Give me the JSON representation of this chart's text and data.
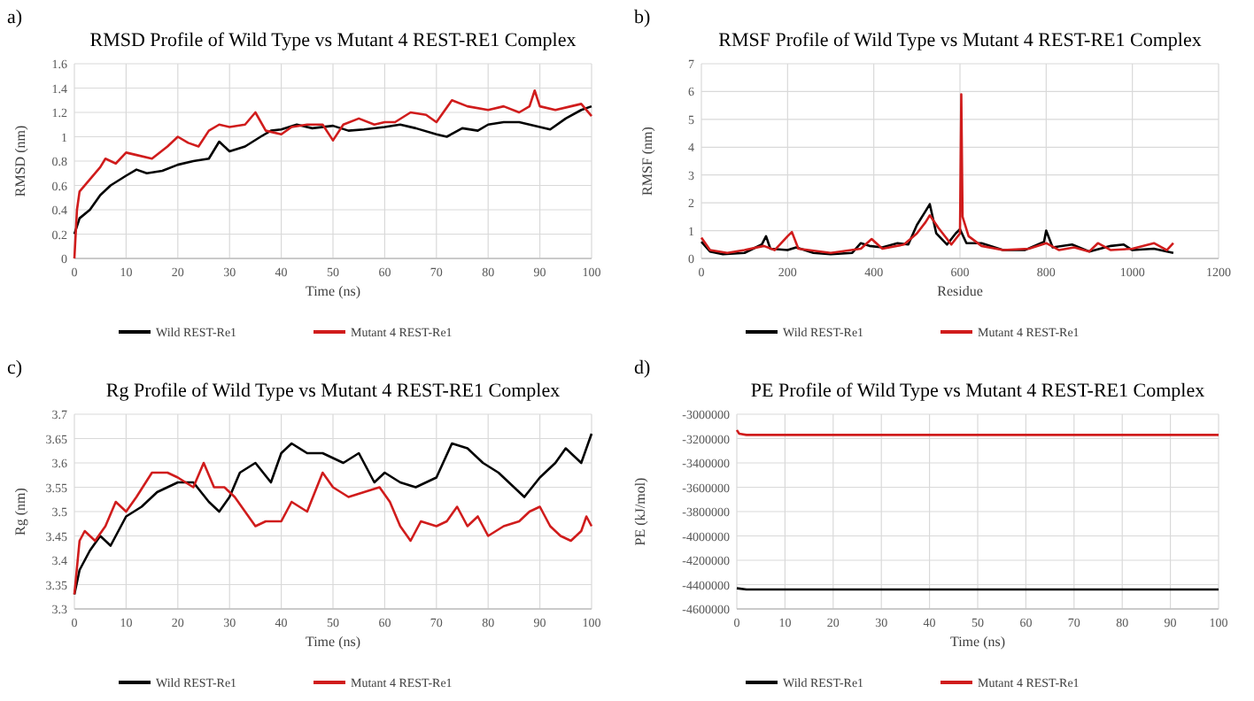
{
  "chart_data": [
    {
      "type": "line",
      "title": "RMSD Profile of Wild Type vs Mutant 4 REST-RE1 Complex",
      "xlabel": "Time (ns)",
      "ylabel": "RMSD (nm)",
      "annotations": [
        "a)"
      ],
      "xlim": [
        0,
        100
      ],
      "xticks": [
        0,
        10,
        20,
        30,
        40,
        50,
        60,
        70,
        80,
        90,
        100
      ],
      "ylim": [
        0,
        1.6
      ],
      "yticks": [
        {
          "value": 0,
          "label": "0"
        },
        {
          "value": 0.2,
          "label": "0.2"
        },
        {
          "value": 0.4,
          "label": "0.4"
        },
        {
          "value": 0.6,
          "label": "0.6"
        },
        {
          "value": 0.8,
          "label": "0.8"
        },
        {
          "value": 1,
          "label": "1"
        },
        {
          "value": 1.2,
          "label": "1.2"
        },
        {
          "value": 1.4,
          "label": "1.4"
        },
        {
          "value": 1.6,
          "label": "1.6"
        }
      ],
      "grid": true,
      "legend": "bottom",
      "series": [
        {
          "name": "Wild REST-Re1",
          "color": "#000000",
          "x": [
            0,
            1,
            3,
            5,
            7,
            10,
            12,
            14,
            17,
            20,
            23,
            26,
            28,
            30,
            33,
            36,
            38,
            40,
            43,
            46,
            50,
            53,
            56,
            60,
            63,
            66,
            70,
            72,
            75,
            78,
            80,
            83,
            86,
            90,
            92,
            95,
            98,
            100
          ],
          "values": [
            0.2,
            0.33,
            0.4,
            0.52,
            0.6,
            0.68,
            0.73,
            0.7,
            0.72,
            0.77,
            0.8,
            0.82,
            0.96,
            0.88,
            0.92,
            1.0,
            1.05,
            1.06,
            1.1,
            1.07,
            1.09,
            1.05,
            1.06,
            1.08,
            1.1,
            1.07,
            1.02,
            1.0,
            1.07,
            1.05,
            1.1,
            1.12,
            1.12,
            1.08,
            1.06,
            1.15,
            1.22,
            1.25
          ]
        },
        {
          "name": "Mutant 4 REST-Re1",
          "color": "#d01c1c",
          "x": [
            0,
            0.5,
            1,
            3,
            5,
            6,
            8,
            10,
            12,
            15,
            18,
            20,
            22,
            24,
            26,
            28,
            30,
            33,
            35,
            37,
            40,
            42,
            45,
            48,
            50,
            52,
            55,
            58,
            60,
            62,
            65,
            68,
            70,
            73,
            76,
            80,
            83,
            86,
            88,
            89,
            90,
            93,
            96,
            98,
            100
          ],
          "values": [
            0,
            0.4,
            0.55,
            0.65,
            0.75,
            0.82,
            0.78,
            0.87,
            0.85,
            0.82,
            0.92,
            1.0,
            0.95,
            0.92,
            1.05,
            1.1,
            1.08,
            1.1,
            1.2,
            1.05,
            1.02,
            1.08,
            1.1,
            1.1,
            0.97,
            1.1,
            1.15,
            1.1,
            1.12,
            1.12,
            1.2,
            1.18,
            1.12,
            1.3,
            1.25,
            1.22,
            1.25,
            1.2,
            1.25,
            1.38,
            1.25,
            1.22,
            1.25,
            1.27,
            1.17
          ]
        }
      ]
    },
    {
      "type": "line",
      "title": "RMSF Profile of Wild Type vs Mutant 4 REST-RE1 Complex",
      "xlabel": "Residue",
      "ylabel": "RMSF (nm)",
      "annotations": [
        "b)"
      ],
      "xlim": [
        0,
        1200
      ],
      "xticks": [
        0,
        200,
        400,
        600,
        800,
        1000,
        1200
      ],
      "ylim": [
        0,
        7
      ],
      "yticks": [
        0,
        1,
        2,
        3,
        4,
        5,
        6,
        7
      ],
      "grid": true,
      "legend": "bottom",
      "series": [
        {
          "name": "Wild REST-Re1",
          "color": "#000000",
          "x": [
            0,
            20,
            50,
            100,
            140,
            150,
            160,
            200,
            220,
            260,
            300,
            350,
            370,
            390,
            420,
            455,
            480,
            500,
            520,
            530,
            545,
            570,
            590,
            600,
            615,
            650,
            700,
            750,
            795,
            800,
            815,
            860,
            900,
            950,
            980,
            1000,
            1050,
            1095
          ],
          "values": [
            0.6,
            0.25,
            0.15,
            0.2,
            0.5,
            0.8,
            0.35,
            0.3,
            0.4,
            0.2,
            0.15,
            0.2,
            0.55,
            0.45,
            0.4,
            0.55,
            0.5,
            1.2,
            1.7,
            1.95,
            0.9,
            0.5,
            0.9,
            1.05,
            0.55,
            0.55,
            0.3,
            0.3,
            0.6,
            1.0,
            0.4,
            0.5,
            0.25,
            0.45,
            0.5,
            0.3,
            0.35,
            0.2
          ]
        },
        {
          "name": "Mutant 4 REST-Re1",
          "color": "#d01c1c",
          "x": [
            0,
            20,
            60,
            100,
            145,
            170,
            200,
            210,
            225,
            300,
            370,
            395,
            420,
            470,
            500,
            520,
            530,
            550,
            580,
            600,
            603,
            606,
            620,
            650,
            700,
            760,
            800,
            830,
            865,
            900,
            920,
            950,
            1000,
            1050,
            1080,
            1095
          ],
          "values": [
            0.75,
            0.3,
            0.2,
            0.3,
            0.45,
            0.3,
            0.8,
            0.95,
            0.35,
            0.2,
            0.35,
            0.7,
            0.35,
            0.5,
            0.9,
            1.3,
            1.55,
            1.1,
            0.5,
            0.9,
            5.9,
            1.5,
            0.8,
            0.45,
            0.3,
            0.35,
            0.55,
            0.3,
            0.4,
            0.25,
            0.55,
            0.3,
            0.35,
            0.55,
            0.3,
            0.55
          ]
        }
      ]
    },
    {
      "type": "line",
      "title": "Rg Profile of Wild Type vs Mutant 4 REST-RE1 Complex",
      "xlabel": "Time (ns)",
      "ylabel": "Rg (nm)",
      "annotations": [
        "c)"
      ],
      "xlim": [
        0,
        100
      ],
      "xticks": [
        0,
        10,
        20,
        30,
        40,
        50,
        60,
        70,
        80,
        90,
        100
      ],
      "ylim": [
        3.3,
        3.7
      ],
      "yticks": [
        3.3,
        3.35,
        3.4,
        3.45,
        3.5,
        3.55,
        3.6,
        3.65,
        3.7
      ],
      "grid": true,
      "legend": "bottom",
      "series": [
        {
          "name": "Wild REST-Re1",
          "color": "#000000",
          "x": [
            0,
            1,
            3,
            5,
            7,
            10,
            13,
            16,
            20,
            23,
            26,
            28,
            30,
            32,
            35,
            38,
            40,
            42,
            45,
            48,
            52,
            55,
            58,
            60,
            63,
            66,
            70,
            73,
            76,
            79,
            82,
            85,
            87,
            90,
            93,
            95,
            98,
            100
          ],
          "values": [
            3.33,
            3.38,
            3.42,
            3.45,
            3.43,
            3.49,
            3.51,
            3.54,
            3.56,
            3.56,
            3.52,
            3.5,
            3.53,
            3.58,
            3.6,
            3.56,
            3.62,
            3.64,
            3.62,
            3.62,
            3.6,
            3.62,
            3.56,
            3.58,
            3.56,
            3.55,
            3.57,
            3.64,
            3.63,
            3.6,
            3.58,
            3.55,
            3.53,
            3.57,
            3.6,
            3.63,
            3.6,
            3.66
          ]
        },
        {
          "name": "Mutant 4 REST-Re1",
          "color": "#d01c1c",
          "x": [
            0,
            1,
            2,
            4,
            6,
            8,
            10,
            12,
            15,
            18,
            20,
            23,
            25,
            27,
            29,
            31,
            33,
            35,
            37,
            40,
            42,
            45,
            48,
            50,
            53,
            56,
            59,
            61,
            63,
            65,
            67,
            70,
            72,
            74,
            76,
            78,
            80,
            83,
            86,
            88,
            90,
            92,
            94,
            96,
            98,
            99,
            100
          ],
          "values": [
            3.33,
            3.44,
            3.46,
            3.44,
            3.47,
            3.52,
            3.5,
            3.53,
            3.58,
            3.58,
            3.57,
            3.55,
            3.6,
            3.55,
            3.55,
            3.53,
            3.5,
            3.47,
            3.48,
            3.48,
            3.52,
            3.5,
            3.58,
            3.55,
            3.53,
            3.54,
            3.55,
            3.52,
            3.47,
            3.44,
            3.48,
            3.47,
            3.48,
            3.51,
            3.47,
            3.49,
            3.45,
            3.47,
            3.48,
            3.5,
            3.51,
            3.47,
            3.45,
            3.44,
            3.46,
            3.49,
            3.47
          ]
        }
      ]
    },
    {
      "type": "line",
      "title": "PE Profile of Wild Type vs Mutant 4 REST-RE1 Complex",
      "xlabel": "Time (ns)",
      "ylabel": "PE (kJ/mol)",
      "annotations": [
        "d)"
      ],
      "xlim": [
        0,
        100
      ],
      "xticks": [
        0,
        10,
        20,
        30,
        40,
        50,
        60,
        70,
        80,
        90,
        100
      ],
      "ylim": [
        -4600000,
        -3000000
      ],
      "yticks": [
        -4600000,
        -4400000,
        -4200000,
        -4000000,
        -3800000,
        -3600000,
        -3400000,
        -3200000,
        -3000000
      ],
      "grid": true,
      "legend": "bottom",
      "series": [
        {
          "name": "Wild REST-Re1",
          "color": "#000000",
          "x": [
            0,
            2,
            10,
            20,
            30,
            40,
            50,
            60,
            70,
            80,
            90,
            100
          ],
          "values": [
            -4430000,
            -4440000,
            -4440000,
            -4440000,
            -4440000,
            -4440000,
            -4440000,
            -4440000,
            -4440000,
            -4440000,
            -4440000,
            -4440000
          ]
        },
        {
          "name": "Mutant 4 REST-Re1",
          "color": "#d01c1c",
          "x": [
            0,
            0.5,
            2,
            10,
            20,
            30,
            40,
            50,
            60,
            70,
            80,
            90,
            100
          ],
          "values": [
            -3130000,
            -3160000,
            -3170000,
            -3170000,
            -3170000,
            -3170000,
            -3170000,
            -3170000,
            -3170000,
            -3170000,
            -3170000,
            -3170000,
            -3170000
          ]
        }
      ]
    }
  ]
}
